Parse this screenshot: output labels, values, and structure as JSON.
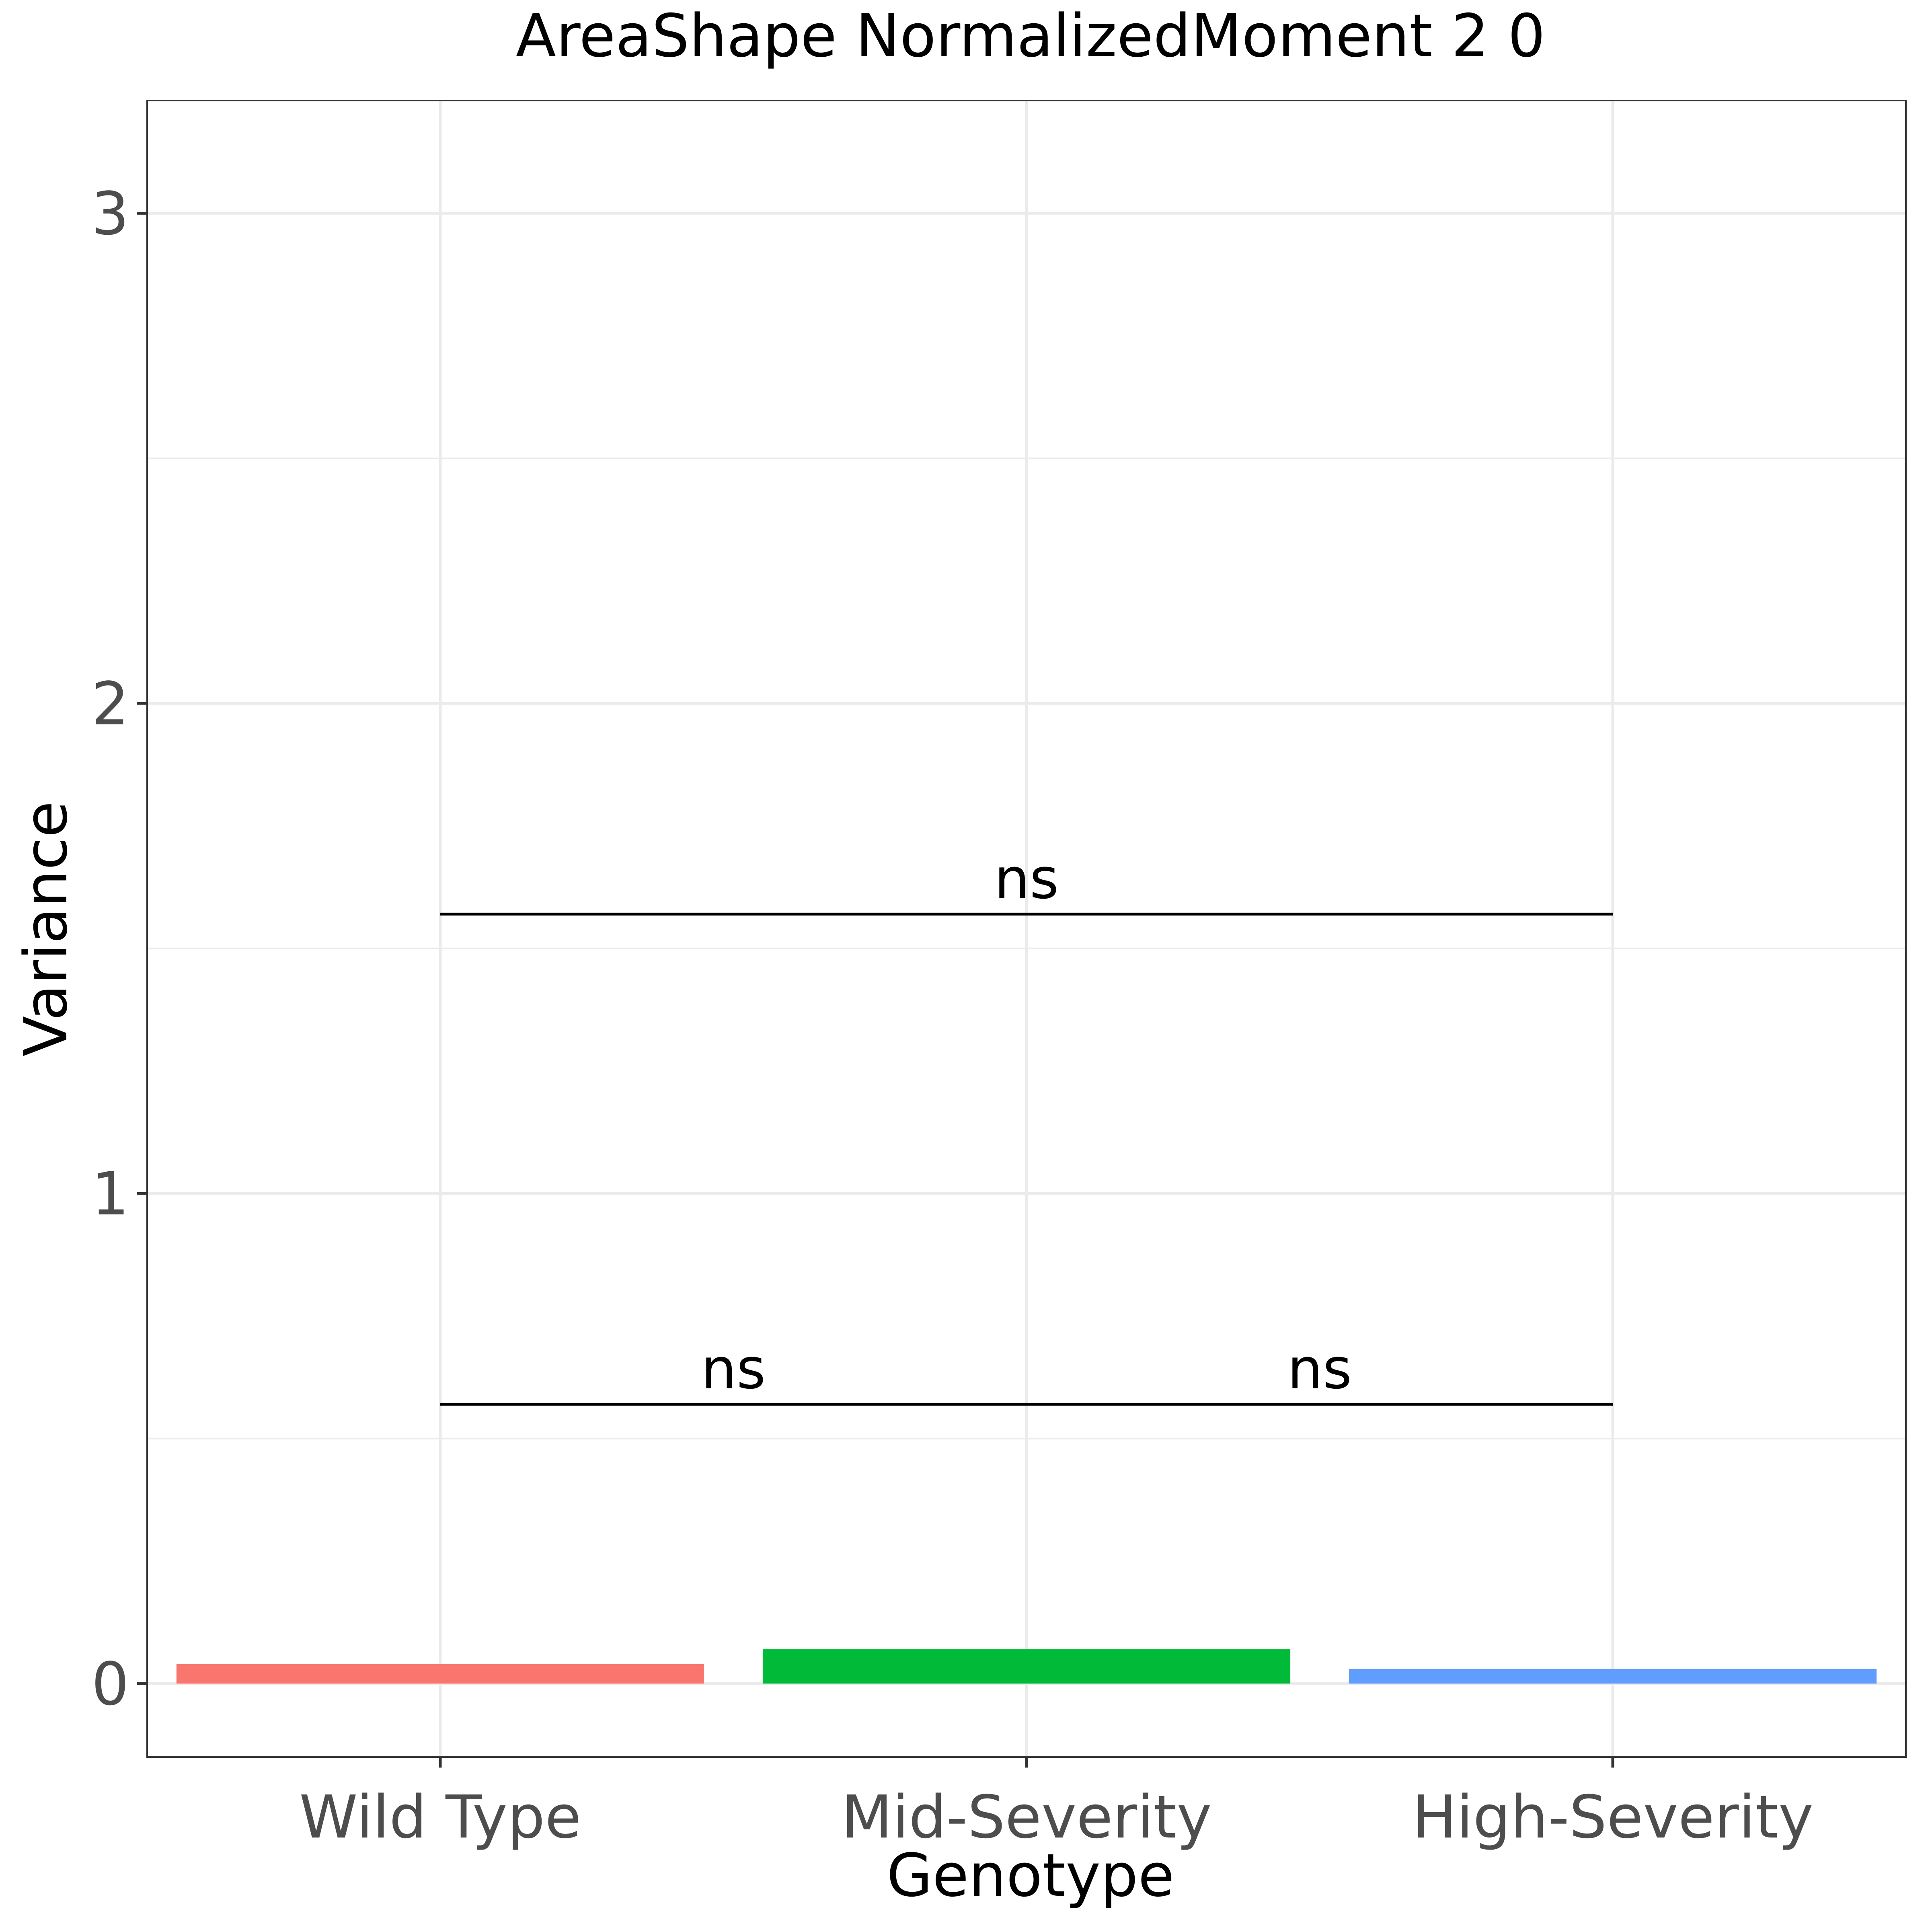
{
  "chart_data": {
    "type": "bar",
    "title": "AreaShape NormalizedMoment 2 0",
    "xlabel": "Genotype",
    "ylabel": "Variance",
    "categories": [
      "Wild Type",
      "Mid-Severity",
      "High-Severity"
    ],
    "values": [
      0.04,
      0.07,
      0.03
    ],
    "colors": [
      "#F8766D",
      "#00BA38",
      "#619CFF"
    ],
    "ylim": [
      -0.15,
      3.23
    ],
    "yticks": [
      0,
      1,
      2,
      3
    ],
    "ytick_labels": [
      "0",
      "1",
      "2",
      "3"
    ],
    "grid": true,
    "legend": "none",
    "comparisons": [
      {
        "from": "Wild Type",
        "to": "Mid-Severity",
        "y": 0.57,
        "label": "ns"
      },
      {
        "from": "Mid-Severity",
        "to": "High-Severity",
        "y": 0.57,
        "label": "ns"
      },
      {
        "from": "Wild Type",
        "to": "High-Severity",
        "y": 1.57,
        "label": "ns"
      }
    ]
  }
}
